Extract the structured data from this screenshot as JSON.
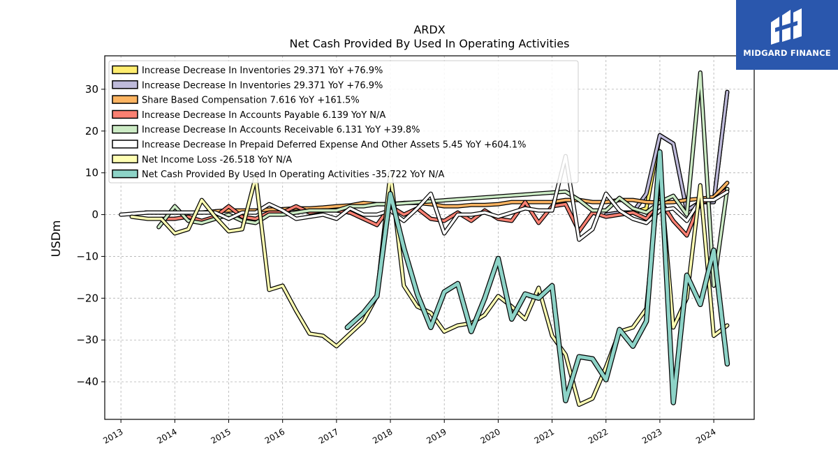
{
  "brand": {
    "name": "MIDGARD FINANCE",
    "logo_icon": "midgard-logo-icon",
    "bg_color": "#2a57ad"
  },
  "chart_data": {
    "type": "line",
    "title": "ARDX",
    "subtitle": "Net Cash Provided By Used In Operating Activities",
    "ylabel": "USDm",
    "xlabel": "",
    "xlim": [
      2012.7,
      2024.75
    ],
    "ylim": [
      -49,
      38
    ],
    "xticks": [
      2013,
      2014,
      2015,
      2016,
      2017,
      2018,
      2019,
      2020,
      2021,
      2022,
      2023,
      2024
    ],
    "xtick_labels": [
      "2013",
      "2014",
      "2015",
      "2016",
      "2017",
      "2018",
      "2019",
      "2020",
      "2021",
      "2022",
      "2023",
      "2024"
    ],
    "yticks": [
      -40,
      -30,
      -20,
      -10,
      0,
      10,
      20,
      30
    ],
    "ytick_labels": [
      "−40",
      "−30",
      "−20",
      "−10",
      "0",
      "10",
      "20",
      "30"
    ],
    "grid": true,
    "legend_position": "top-left",
    "series": [
      {
        "name": "Increase Decrease In Inventories",
        "legend": "Increase Decrease In Inventories  29.371 YoY +76.9%",
        "color": "#ffed6f",
        "points": [
          [
            2022.0,
            0
          ],
          [
            2022.25,
            0.5
          ],
          [
            2022.5,
            0.5
          ],
          [
            2022.75,
            1.5
          ],
          [
            2023.0,
            19
          ],
          [
            2023.25,
            17
          ],
          [
            2023.5,
            1
          ],
          [
            2023.75,
            3
          ],
          [
            2024.0,
            3
          ],
          [
            2024.25,
            29.371
          ]
        ]
      },
      {
        "name": "Increase Decrease In Inventories",
        "legend": "Increase Decrease In Inventories  29.371 YoY +76.9%",
        "color": "#bebada",
        "points": [
          [
            2022.0,
            0
          ],
          [
            2022.25,
            0.5
          ],
          [
            2022.5,
            0.5
          ],
          [
            2022.75,
            5
          ],
          [
            2023.0,
            19
          ],
          [
            2023.25,
            17
          ],
          [
            2023.5,
            1
          ],
          [
            2023.75,
            3
          ],
          [
            2024.0,
            3
          ],
          [
            2024.25,
            29.371
          ]
        ]
      },
      {
        "name": "Share Based Compensation",
        "legend": "Share Based Compensation  7.616 YoY +161.5%",
        "color": "#fdb462",
        "points": [
          [
            2013.45,
            0.5
          ],
          [
            2013.75,
            0.5
          ],
          [
            2014.0,
            0.5
          ],
          [
            2014.25,
            0.5
          ],
          [
            2014.5,
            0.5
          ],
          [
            2014.75,
            0.8
          ],
          [
            2015.0,
            1
          ],
          [
            2015.25,
            1
          ],
          [
            2015.5,
            1
          ],
          [
            2015.75,
            1.2
          ],
          [
            2016.0,
            1.3
          ],
          [
            2016.25,
            1.5
          ],
          [
            2016.5,
            1.5
          ],
          [
            2016.75,
            1.7
          ],
          [
            2017.0,
            2
          ],
          [
            2017.25,
            2.2
          ],
          [
            2017.5,
            2.8
          ],
          [
            2017.75,
            2.5
          ],
          [
            2018.0,
            2.5
          ],
          [
            2018.25,
            2.8
          ],
          [
            2018.5,
            2.8
          ],
          [
            2018.75,
            2.5
          ],
          [
            2019.0,
            2
          ],
          [
            2019.25,
            2
          ],
          [
            2019.5,
            2.3
          ],
          [
            2019.75,
            2.3
          ],
          [
            2020.0,
            2.5
          ],
          [
            2020.25,
            3
          ],
          [
            2020.5,
            3
          ],
          [
            2020.75,
            3
          ],
          [
            2021.0,
            3
          ],
          [
            2021.25,
            3.5
          ],
          [
            2021.5,
            3.5
          ],
          [
            2021.75,
            3
          ],
          [
            2022.0,
            3
          ],
          [
            2022.25,
            3.5
          ],
          [
            2022.5,
            3.5
          ],
          [
            2022.75,
            3
          ],
          [
            2023.0,
            2.9
          ],
          [
            2023.25,
            3
          ],
          [
            2023.5,
            3.5
          ],
          [
            2023.75,
            3.8
          ],
          [
            2024.0,
            4.2
          ],
          [
            2024.25,
            7.616
          ]
        ]
      },
      {
        "name": "Increase Decrease In Accounts Payable",
        "legend": "Increase Decrease In Accounts Payable  6.139 YoY N/A",
        "color": "#fb8072",
        "points": [
          [
            2013.75,
            -1
          ],
          [
            2014.0,
            -1
          ],
          [
            2014.25,
            -0.5
          ],
          [
            2014.5,
            -1.5
          ],
          [
            2014.75,
            -0.5
          ],
          [
            2015.0,
            2
          ],
          [
            2015.25,
            -0.5
          ],
          [
            2015.5,
            -1
          ],
          [
            2015.75,
            0.5
          ],
          [
            2016.0,
            0.5
          ],
          [
            2016.25,
            2
          ],
          [
            2016.5,
            0.5
          ],
          [
            2016.75,
            1
          ],
          [
            2017.0,
            1
          ],
          [
            2017.25,
            0.5
          ],
          [
            2017.5,
            -1
          ],
          [
            2017.75,
            -2.5
          ],
          [
            2018.0,
            2
          ],
          [
            2018.25,
            0
          ],
          [
            2018.5,
            1.5
          ],
          [
            2018.75,
            -1
          ],
          [
            2019.0,
            -1.5
          ],
          [
            2019.25,
            0.5
          ],
          [
            2019.5,
            -1.5
          ],
          [
            2019.75,
            1
          ],
          [
            2020.0,
            -1
          ],
          [
            2020.25,
            -1.5
          ],
          [
            2020.5,
            3
          ],
          [
            2020.75,
            -2
          ],
          [
            2021.0,
            2
          ],
          [
            2021.25,
            2.5
          ],
          [
            2021.5,
            -4
          ],
          [
            2021.75,
            0.5
          ],
          [
            2022.0,
            -0.5
          ],
          [
            2022.25,
            0
          ],
          [
            2022.5,
            0.5
          ],
          [
            2022.75,
            -1
          ],
          [
            2023.0,
            3.5
          ],
          [
            2023.25,
            -1.5
          ],
          [
            2023.5,
            -5
          ],
          [
            2023.75,
            3
          ],
          [
            2024.0,
            3.5
          ],
          [
            2024.25,
            6.139
          ]
        ]
      },
      {
        "name": "Increase Decrease In Accounts Receivable",
        "legend": "Increase Decrease In Accounts Receivable  6.131 YoY +39.8%",
        "color": "#ccebc5",
        "points": [
          [
            2013.7,
            -3
          ],
          [
            2014.0,
            2
          ],
          [
            2014.25,
            -1.5
          ],
          [
            2014.5,
            -2
          ],
          [
            2014.75,
            -1
          ],
          [
            2015.0,
            0
          ],
          [
            2015.25,
            -1.5
          ],
          [
            2015.5,
            -2
          ],
          [
            2015.75,
            0
          ],
          [
            2016.0,
            0
          ],
          [
            2016.25,
            0.5
          ],
          [
            2016.5,
            1
          ],
          [
            2016.75,
            1
          ],
          [
            2017.0,
            1
          ],
          [
            2017.25,
            2
          ],
          [
            2017.5,
            2
          ],
          [
            2017.75,
            2.5
          ],
          [
            2018.0,
            2.5
          ],
          [
            2021.25,
            5.5
          ],
          [
            2021.5,
            3.5
          ],
          [
            2021.75,
            1
          ],
          [
            2022.0,
            1
          ],
          [
            2022.25,
            4
          ],
          [
            2022.5,
            1.5
          ],
          [
            2022.75,
            0.5
          ],
          [
            2023.0,
            3
          ],
          [
            2023.25,
            4.5
          ],
          [
            2023.5,
            0
          ],
          [
            2023.75,
            34
          ],
          [
            2024.0,
            -17
          ],
          [
            2024.25,
            6.131
          ]
        ]
      },
      {
        "name": "Increase Decrease In Prepaid Deferred Expense And Other Assets",
        "legend": "Increase Decrease In Prepaid Deferred Expense And Other Assets  5.45 YoY +604.1%",
        "color": "#ffffff",
        "points": [
          [
            2013.0,
            0
          ],
          [
            2013.5,
            0.5
          ],
          [
            2013.75,
            0.5
          ],
          [
            2014.0,
            0.5
          ],
          [
            2014.25,
            0.5
          ],
          [
            2014.5,
            0.5
          ],
          [
            2014.75,
            0.5
          ],
          [
            2015.0,
            -1
          ],
          [
            2015.25,
            0.5
          ],
          [
            2015.5,
            0.5
          ],
          [
            2015.75,
            2.5
          ],
          [
            2016.0,
            1
          ],
          [
            2016.25,
            -1
          ],
          [
            2016.5,
            -0.5
          ],
          [
            2016.75,
            0
          ],
          [
            2017.0,
            -1
          ],
          [
            2017.25,
            1.5
          ],
          [
            2017.5,
            0
          ],
          [
            2017.75,
            0
          ],
          [
            2018.0,
            1
          ],
          [
            2018.25,
            -1.5
          ],
          [
            2018.5,
            1.5
          ],
          [
            2018.75,
            5
          ],
          [
            2019.0,
            -4.5
          ],
          [
            2019.25,
            0
          ],
          [
            2019.5,
            0
          ],
          [
            2019.75,
            0.5
          ],
          [
            2020.0,
            -0.5
          ],
          [
            2020.25,
            0.5
          ],
          [
            2020.5,
            1.5
          ],
          [
            2020.75,
            1
          ],
          [
            2021.0,
            1
          ],
          [
            2021.25,
            14
          ],
          [
            2021.5,
            -6
          ],
          [
            2021.75,
            -3.5
          ],
          [
            2022.0,
            5
          ],
          [
            2022.25,
            1
          ],
          [
            2022.5,
            -1
          ],
          [
            2022.75,
            -2
          ],
          [
            2023.0,
            1
          ],
          [
            2023.25,
            1.5
          ],
          [
            2023.5,
            -1.5
          ],
          [
            2023.75,
            3.5
          ],
          [
            2024.0,
            3.5
          ],
          [
            2024.25,
            5.45
          ]
        ]
      },
      {
        "name": "Net Income Loss",
        "legend": "Net Income Loss  -26.518 YoY N/A",
        "color": "#ffffb3",
        "points": [
          [
            2013.2,
            -0.5
          ],
          [
            2013.5,
            -1
          ],
          [
            2013.75,
            -1
          ],
          [
            2014.0,
            -4.5
          ],
          [
            2014.25,
            -3.5
          ],
          [
            2014.5,
            3.5
          ],
          [
            2014.75,
            -0.5
          ],
          [
            2015.0,
            -4
          ],
          [
            2015.25,
            -3.5
          ],
          [
            2015.5,
            9
          ],
          [
            2015.75,
            -18
          ],
          [
            2016.0,
            -17
          ],
          [
            2016.25,
            -23
          ],
          [
            2016.5,
            -28.5
          ],
          [
            2016.75,
            -29
          ],
          [
            2017.0,
            -31.5
          ],
          [
            2017.25,
            -28.5
          ],
          [
            2017.5,
            -25.5
          ],
          [
            2017.75,
            -19.5
          ],
          [
            2018.0,
            10
          ],
          [
            2018.25,
            -17
          ],
          [
            2018.5,
            -22
          ],
          [
            2018.75,
            -23.5
          ],
          [
            2019.0,
            -28
          ],
          [
            2019.25,
            -26.5
          ],
          [
            2019.5,
            -26
          ],
          [
            2019.75,
            -24
          ],
          [
            2020.0,
            -19.5
          ],
          [
            2020.25,
            -22
          ],
          [
            2020.5,
            -25
          ],
          [
            2020.75,
            -17.5
          ],
          [
            2021.0,
            -29
          ],
          [
            2021.25,
            -33.5
          ],
          [
            2021.5,
            -45.5
          ],
          [
            2021.75,
            -44
          ],
          [
            2022.0,
            -36.5
          ],
          [
            2022.25,
            -28
          ],
          [
            2022.5,
            -27
          ],
          [
            2022.75,
            -22.5
          ],
          [
            2023.0,
            10.5
          ],
          [
            2023.25,
            -27
          ],
          [
            2023.5,
            -20
          ],
          [
            2023.75,
            7
          ],
          [
            2024.0,
            -29
          ],
          [
            2024.25,
            -26.518
          ]
        ]
      },
      {
        "name": "Net Cash Provided By Used In Operating Activities",
        "legend": "Net Cash Provided By Used In Operating Activities  -35.722 YoY N/A",
        "color": "#8dd3c7",
        "points": [
          [
            2017.2,
            -27
          ],
          [
            2017.5,
            -23.5
          ],
          [
            2017.75,
            -19.5
          ],
          [
            2018.0,
            5
          ],
          [
            2018.25,
            -8
          ],
          [
            2018.5,
            -19
          ],
          [
            2018.75,
            -27
          ],
          [
            2019.0,
            -18.5
          ],
          [
            2019.25,
            -16.5
          ],
          [
            2019.5,
            -28
          ],
          [
            2019.75,
            -20
          ],
          [
            2020.0,
            -10.5
          ],
          [
            2020.25,
            -25
          ],
          [
            2020.5,
            -19
          ],
          [
            2020.75,
            -20
          ],
          [
            2021.0,
            -17
          ],
          [
            2021.25,
            -44.5
          ],
          [
            2021.5,
            -34
          ],
          [
            2021.75,
            -34.5
          ],
          [
            2022.0,
            -39.5
          ],
          [
            2022.25,
            -27.5
          ],
          [
            2022.5,
            -31.5
          ],
          [
            2022.75,
            -25.5
          ],
          [
            2023.0,
            15
          ],
          [
            2023.25,
            -45
          ],
          [
            2023.5,
            -14.5
          ],
          [
            2023.75,
            -21.5
          ],
          [
            2024.0,
            -8.5
          ],
          [
            2024.25,
            -35.722
          ]
        ]
      }
    ]
  }
}
